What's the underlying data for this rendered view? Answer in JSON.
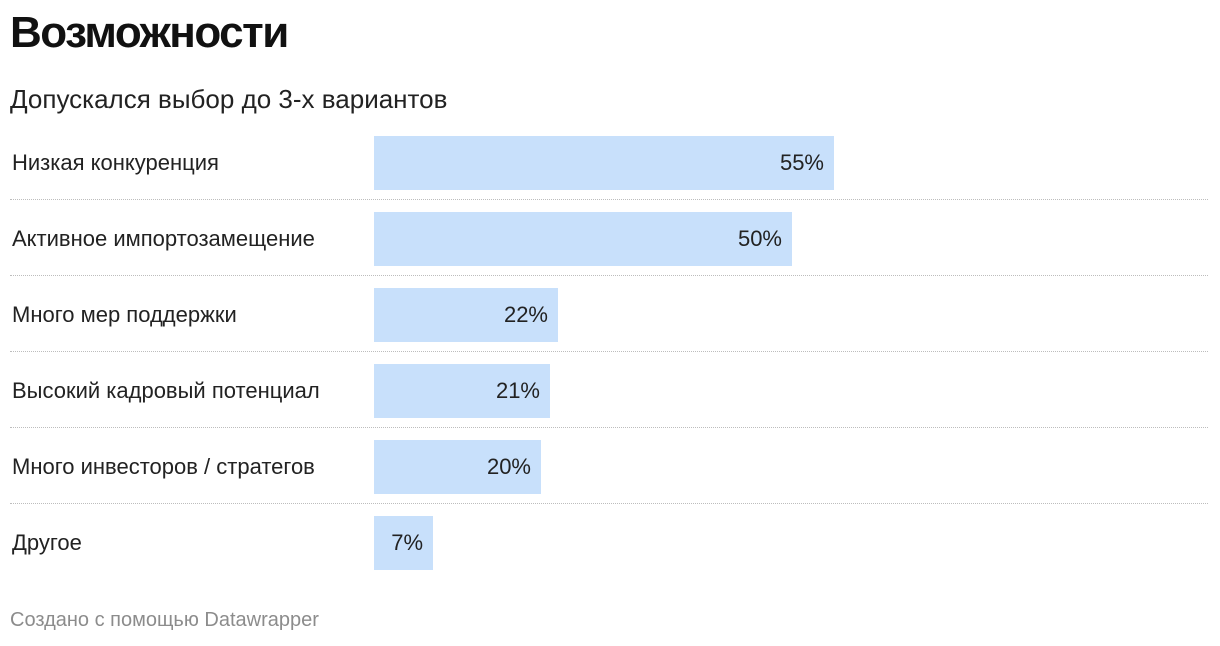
{
  "title": "Возможности",
  "subtitle": "Допускался выбор до 3-х вариантов",
  "footer": "Создано с помощью Datawrapper",
  "colors": {
    "bar": "#c8e0fb",
    "text": "#222222",
    "footer": "#8c8c8c",
    "divider": "#bdbdbd"
  },
  "chart_data": {
    "type": "bar",
    "orientation": "horizontal",
    "title": "Возможности",
    "subtitle": "Допускался выбор до 3-х вариантов",
    "categories": [
      "Низкая конкуренция",
      "Активное импортозамещение",
      "Много мер поддержки",
      "Высокий кадровый потенциал",
      "Много инвесторов / стратегов",
      "Другое"
    ],
    "values": [
      55,
      50,
      22,
      21,
      20,
      7
    ],
    "value_labels": [
      "55%",
      "50%",
      "22%",
      "21%",
      "20%",
      "7%"
    ],
    "xlim": [
      0,
      100
    ],
    "grid": false,
    "legend": "none"
  }
}
